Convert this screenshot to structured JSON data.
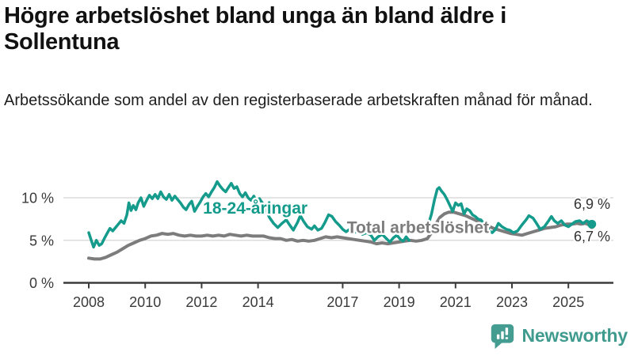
{
  "header": {
    "title": "Högre arbetslöshet bland unga än bland äldre i Sollentuna",
    "subtitle": "Arbetssökande som andel av den registerbaserade arbetskraften månad för månad."
  },
  "branding": {
    "logo_text": "Newsworthy",
    "logo_color": "#3f9b8e",
    "logo_icon": "bar-chart-speech-bubble-icon"
  },
  "chart_data": {
    "type": "line",
    "title": "Högre arbetslöshet bland unga än bland äldre i Sollentuna",
    "subtitle": "Arbetssökande som andel av den registerbaserade arbetskraften månad för månad.",
    "unit": "%",
    "grid": "horizontal",
    "x_axis": {
      "range": [
        2008,
        2025.9
      ],
      "tick_labels": [
        "2008",
        "2010",
        "2012",
        "2014",
        "2017",
        "2019",
        "2021",
        "2023",
        "2025"
      ],
      "tick_values": [
        2008,
        2010,
        2012,
        2014,
        2017,
        2019,
        2021,
        2023,
        2025
      ]
    },
    "y_axis": {
      "range": [
        0,
        13
      ],
      "tick_values": [
        0,
        5,
        10
      ],
      "tick_labels": [
        "0 %",
        "5 %",
        "10 %"
      ]
    },
    "axis_color": "#3c3c3c",
    "grid_color": "#dcdcdc",
    "tick_text_color": "#3a3a3a",
    "end_label_color": "#333333",
    "series": [
      {
        "name": "18-24-åringar",
        "color": "#149b8b",
        "end_label": "6,9 %",
        "end_value": 6.9,
        "label_anchor": {
          "year": 2012.05,
          "value": 8.15,
          "align": "start"
        },
        "segments": [
          [
            [
              2008.0,
              5.9
            ],
            [
              2008.08,
              5.1
            ],
            [
              2008.17,
              4.2
            ],
            [
              2008.27,
              5.0
            ],
            [
              2008.37,
              4.4
            ],
            [
              2008.46,
              4.6
            ],
            [
              2008.55,
              5.2
            ],
            [
              2008.65,
              5.8
            ],
            [
              2008.75,
              6.4
            ],
            [
              2008.85,
              6.1
            ],
            [
              2008.95,
              6.5
            ],
            [
              2009.05,
              6.9
            ],
            [
              2009.15,
              7.3
            ],
            [
              2009.25,
              7.0
            ],
            [
              2009.35,
              8.0
            ],
            [
              2009.42,
              9.4
            ],
            [
              2009.5,
              8.5
            ],
            [
              2009.58,
              9.1
            ],
            [
              2009.67,
              8.6
            ],
            [
              2009.75,
              9.4
            ],
            [
              2009.85,
              10.0
            ],
            [
              2009.95,
              9.0
            ],
            [
              2010.05,
              9.7
            ],
            [
              2010.15,
              10.3
            ],
            [
              2010.25,
              9.9
            ],
            [
              2010.35,
              10.4
            ],
            [
              2010.45,
              9.9
            ],
            [
              2010.55,
              10.7
            ],
            [
              2010.65,
              10.1
            ],
            [
              2010.75,
              9.8
            ],
            [
              2010.85,
              10.4
            ],
            [
              2010.95,
              9.7
            ],
            [
              2011.05,
              10.2
            ],
            [
              2011.15,
              9.8
            ],
            [
              2011.25,
              9.4
            ],
            [
              2011.35,
              8.9
            ],
            [
              2011.45,
              8.6
            ],
            [
              2011.55,
              9.2
            ],
            [
              2011.65,
              9.6
            ],
            [
              2011.75,
              8.4
            ],
            [
              2011.85,
              9.0
            ],
            [
              2011.95,
              9.5
            ],
            [
              2012.05,
              10.1
            ],
            [
              2012.15,
              10.5
            ],
            [
              2012.25,
              10.1
            ],
            [
              2012.35,
              10.7
            ],
            [
              2012.45,
              11.2
            ],
            [
              2012.55,
              11.9
            ],
            [
              2012.65,
              11.4
            ],
            [
              2012.75,
              11.0
            ],
            [
              2012.85,
              10.7
            ],
            [
              2012.95,
              11.2
            ],
            [
              2013.05,
              11.7
            ],
            [
              2013.15,
              11.1
            ],
            [
              2013.25,
              11.3
            ],
            [
              2013.35,
              10.5
            ],
            [
              2013.45,
              10.1
            ],
            [
              2013.55,
              10.6
            ],
            [
              2013.65,
              10.0
            ],
            [
              2013.75,
              9.7
            ],
            [
              2013.85,
              10.2
            ],
            [
              2013.95,
              9.5
            ],
            [
              2014.05,
              9.9
            ],
            [
              2014.15,
              9.4
            ],
            [
              2014.25,
              8.9
            ],
            [
              2014.4,
              7.7
            ],
            [
              2014.55,
              7.0
            ],
            [
              2014.7,
              6.5
            ],
            [
              2014.85,
              7.0
            ],
            [
              2015.0,
              7.4
            ],
            [
              2015.12,
              6.8
            ],
            [
              2015.25,
              6.2
            ],
            [
              2015.4,
              7.1
            ],
            [
              2015.5,
              7.9
            ],
            [
              2015.62,
              7.2
            ],
            [
              2015.75,
              6.6
            ],
            [
              2015.9,
              6.3
            ],
            [
              2016.0,
              6.7
            ],
            [
              2016.12,
              6.2
            ],
            [
              2016.25,
              6.4
            ],
            [
              2016.37,
              7.1
            ],
            [
              2016.5,
              8.0
            ],
            [
              2016.62,
              7.8
            ],
            [
              2016.75,
              7.2
            ],
            [
              2016.87,
              6.8
            ],
            [
              2017.0,
              6.3
            ],
            [
              2017.12,
              6.0
            ],
            [
              2017.25,
              6.3
            ],
            [
              2017.4,
              5.9
            ],
            [
              2017.55,
              6.1
            ],
            [
              2017.7,
              5.7
            ],
            [
              2017.85,
              5.9
            ],
            [
              2018.0,
              5.6
            ],
            [
              2018.12,
              5.0
            ],
            [
              2018.25,
              5.4
            ],
            [
              2018.4,
              5.7
            ],
            [
              2018.55,
              5.2
            ],
            [
              2018.67,
              4.8
            ],
            [
              2018.8,
              5.3
            ],
            [
              2018.92,
              5.6
            ],
            [
              2019.05,
              5.1
            ],
            [
              2019.15,
              4.9
            ],
            [
              2019.25,
              5.4
            ],
            [
              2019.35,
              5.0
            ]
          ],
          [
            [
              2019.95,
              6.1
            ],
            [
              2020.05,
              7.0
            ],
            [
              2020.15,
              8.1
            ],
            [
              2020.25,
              9.7
            ],
            [
              2020.35,
              11.0
            ],
            [
              2020.42,
              11.2
            ],
            [
              2020.5,
              10.8
            ],
            [
              2020.6,
              10.4
            ],
            [
              2020.7,
              9.8
            ],
            [
              2020.8,
              9.1
            ],
            [
              2020.9,
              8.4
            ],
            [
              2021.0,
              9.4
            ],
            [
              2021.1,
              9.1
            ],
            [
              2021.2,
              9.3
            ],
            [
              2021.3,
              8.1
            ],
            [
              2021.4,
              8.7
            ],
            [
              2021.5,
              8.5
            ],
            [
              2021.6,
              8.0
            ],
            [
              2021.7,
              7.8
            ],
            [
              2021.8,
              7.5
            ],
            [
              2021.9,
              7.4
            ],
            [
              2022.0,
              7.0
            ],
            [
              2022.1,
              6.6
            ],
            [
              2022.2,
              6.1
            ],
            [
              2022.3,
              5.9
            ],
            [
              2022.42,
              6.3
            ],
            [
              2022.52,
              7.0
            ],
            [
              2022.65,
              6.6
            ],
            [
              2022.8,
              6.3
            ],
            [
              2022.92,
              6.2
            ],
            [
              2023.05,
              5.9
            ],
            [
              2023.2,
              6.1
            ],
            [
              2023.35,
              6.8
            ],
            [
              2023.5,
              7.4
            ],
            [
              2023.6,
              7.9
            ],
            [
              2023.75,
              7.6
            ],
            [
              2023.87,
              7.0
            ],
            [
              2024.0,
              6.3
            ],
            [
              2024.15,
              6.6
            ],
            [
              2024.3,
              7.3
            ],
            [
              2024.4,
              7.8
            ],
            [
              2024.5,
              7.3
            ],
            [
              2024.62,
              7.0
            ],
            [
              2024.75,
              7.3
            ],
            [
              2024.87,
              6.8
            ],
            [
              2025.0,
              6.6
            ],
            [
              2025.12,
              6.9
            ],
            [
              2025.25,
              7.2
            ],
            [
              2025.4,
              7.3
            ],
            [
              2025.52,
              7.0
            ],
            [
              2025.65,
              7.3
            ],
            [
              2025.75,
              7.1
            ],
            [
              2025.83,
              6.9
            ]
          ]
        ]
      },
      {
        "name": "Total arbetslöshet",
        "color": "#7c7c7c",
        "end_label": "6,7 %",
        "end_value": 6.7,
        "label_anchor": {
          "year": 2017.15,
          "value": 5.85,
          "align": "start"
        },
        "segments": [
          [
            [
              2008.0,
              2.9
            ],
            [
              2008.2,
              2.8
            ],
            [
              2008.4,
              2.8
            ],
            [
              2008.6,
              3.0
            ],
            [
              2008.8,
              3.3
            ],
            [
              2009.0,
              3.6
            ],
            [
              2009.2,
              4.0
            ],
            [
              2009.4,
              4.4
            ],
            [
              2009.6,
              4.7
            ],
            [
              2009.8,
              5.0
            ],
            [
              2010.0,
              5.2
            ],
            [
              2010.2,
              5.5
            ],
            [
              2010.4,
              5.6
            ],
            [
              2010.6,
              5.8
            ],
            [
              2010.8,
              5.7
            ],
            [
              2011.0,
              5.8
            ],
            [
              2011.2,
              5.6
            ],
            [
              2011.4,
              5.5
            ],
            [
              2011.6,
              5.6
            ],
            [
              2011.8,
              5.5
            ],
            [
              2012.0,
              5.5
            ],
            [
              2012.2,
              5.6
            ],
            [
              2012.4,
              5.5
            ],
            [
              2012.6,
              5.6
            ],
            [
              2012.8,
              5.5
            ],
            [
              2013.0,
              5.7
            ],
            [
              2013.2,
              5.6
            ],
            [
              2013.4,
              5.5
            ],
            [
              2013.6,
              5.6
            ],
            [
              2013.8,
              5.5
            ],
            [
              2014.0,
              5.5
            ],
            [
              2014.2,
              5.5
            ],
            [
              2014.4,
              5.3
            ],
            [
              2014.6,
              5.2
            ],
            [
              2014.8,
              5.2
            ],
            [
              2015.0,
              5.0
            ],
            [
              2015.2,
              5.1
            ],
            [
              2015.4,
              4.9
            ],
            [
              2015.6,
              5.0
            ],
            [
              2015.8,
              4.9
            ],
            [
              2016.0,
              5.0
            ],
            [
              2016.2,
              5.2
            ],
            [
              2016.4,
              5.4
            ],
            [
              2016.6,
              5.3
            ],
            [
              2016.8,
              5.4
            ],
            [
              2017.0,
              5.3
            ],
            [
              2017.2,
              5.2
            ],
            [
              2017.4,
              5.1
            ],
            [
              2017.6,
              5.0
            ],
            [
              2017.8,
              4.9
            ],
            [
              2018.0,
              4.8
            ],
            [
              2018.2,
              4.6
            ],
            [
              2018.4,
              4.7
            ],
            [
              2018.6,
              4.6
            ],
            [
              2018.8,
              4.7
            ],
            [
              2019.0,
              4.8
            ],
            [
              2019.2,
              4.9
            ],
            [
              2019.4,
              5.0
            ],
            [
              2019.6,
              4.9
            ],
            [
              2019.8,
              5.0
            ],
            [
              2020.0,
              5.2
            ],
            [
              2020.15,
              5.9
            ],
            [
              2020.3,
              6.9
            ],
            [
              2020.45,
              7.7
            ],
            [
              2020.6,
              8.1
            ],
            [
              2020.75,
              8.3
            ],
            [
              2020.95,
              8.3
            ],
            [
              2021.15,
              8.1
            ],
            [
              2021.35,
              7.9
            ],
            [
              2021.55,
              7.6
            ],
            [
              2021.75,
              7.3
            ],
            [
              2021.95,
              7.0
            ],
            [
              2022.15,
              6.7
            ],
            [
              2022.35,
              6.4
            ],
            [
              2022.55,
              6.2
            ],
            [
              2022.75,
              6.0
            ],
            [
              2022.95,
              5.8
            ],
            [
              2023.15,
              5.7
            ],
            [
              2023.35,
              5.6
            ],
            [
              2023.55,
              5.8
            ],
            [
              2023.75,
              6.0
            ],
            [
              2023.95,
              6.2
            ],
            [
              2024.15,
              6.4
            ],
            [
              2024.35,
              6.5
            ],
            [
              2024.55,
              6.6
            ],
            [
              2024.75,
              6.8
            ],
            [
              2024.95,
              6.9
            ],
            [
              2025.15,
              6.9
            ],
            [
              2025.3,
              7.0
            ],
            [
              2025.45,
              6.9
            ],
            [
              2025.6,
              7.0
            ],
            [
              2025.83,
              6.7
            ]
          ]
        ]
      }
    ]
  }
}
